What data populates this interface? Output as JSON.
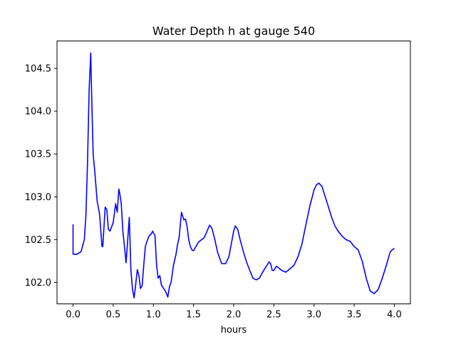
{
  "chart_data": {
    "type": "line",
    "title": "Water Depth h at gauge 540",
    "xlabel": "hours",
    "ylabel": "",
    "xlim": [
      -0.2,
      4.2
    ],
    "ylim": [
      101.75,
      104.82
    ],
    "xticks": [
      0.0,
      0.5,
      1.0,
      1.5,
      2.0,
      2.5,
      3.0,
      3.5,
      4.0
    ],
    "xtick_labels": [
      "0.0",
      "0.5",
      "1.0",
      "1.5",
      "2.0",
      "2.5",
      "3.0",
      "3.5",
      "4.0"
    ],
    "yticks": [
      102.0,
      102.5,
      103.0,
      103.5,
      104.0,
      104.5
    ],
    "ytick_labels": [
      "102.0",
      "102.5",
      "103.0",
      "103.5",
      "104.0",
      "104.5"
    ],
    "grid": false,
    "series": [
      {
        "color": "#0000ff",
        "x": [
          0.0,
          0.0,
          0.05,
          0.1,
          0.14,
          0.16,
          0.18,
          0.2,
          0.22,
          0.23,
          0.25,
          0.27,
          0.3,
          0.33,
          0.36,
          0.37,
          0.4,
          0.42,
          0.44,
          0.46,
          0.48,
          0.5,
          0.53,
          0.55,
          0.57,
          0.58,
          0.6,
          0.62,
          0.64,
          0.66,
          0.7,
          0.72,
          0.74,
          0.76,
          0.78,
          0.8,
          0.82,
          0.84,
          0.86,
          0.88,
          0.9,
          0.92,
          0.95,
          0.97,
          0.99,
          1.0,
          1.02,
          1.04,
          1.06,
          1.08,
          1.1,
          1.12,
          1.15,
          1.18,
          1.2,
          1.22,
          1.25,
          1.28,
          1.3,
          1.32,
          1.35,
          1.38,
          1.4,
          1.42,
          1.44,
          1.46,
          1.48,
          1.5,
          1.53,
          1.56,
          1.6,
          1.63,
          1.66,
          1.7,
          1.73,
          1.76,
          1.8,
          1.85,
          1.9,
          1.94,
          1.98,
          2.0,
          2.02,
          2.05,
          2.08,
          2.12,
          2.16,
          2.2,
          2.24,
          2.28,
          2.32,
          2.36,
          2.4,
          2.44,
          2.46,
          2.48,
          2.5,
          2.53,
          2.56,
          2.6,
          2.65,
          2.7,
          2.75,
          2.8,
          2.85,
          2.9,
          2.95,
          3.0,
          3.03,
          3.06,
          3.1,
          3.14,
          3.18,
          3.22,
          3.26,
          3.3,
          3.35,
          3.4,
          3.45,
          3.5,
          3.55,
          3.6,
          3.65,
          3.7,
          3.75,
          3.8,
          3.85,
          3.9,
          3.95,
          4.0
        ],
        "y": [
          102.68,
          102.33,
          102.33,
          102.36,
          102.5,
          102.78,
          103.4,
          104.25,
          104.68,
          104.25,
          103.5,
          103.3,
          102.95,
          102.8,
          102.42,
          102.42,
          102.88,
          102.85,
          102.62,
          102.6,
          102.65,
          102.7,
          102.92,
          102.82,
          103.09,
          103.05,
          102.92,
          102.6,
          102.42,
          102.23,
          102.76,
          102.15,
          101.92,
          101.82,
          101.98,
          102.15,
          102.08,
          101.93,
          101.96,
          102.2,
          102.42,
          102.48,
          102.55,
          102.56,
          102.6,
          102.58,
          102.55,
          102.2,
          102.05,
          102.08,
          101.97,
          101.94,
          101.9,
          101.83,
          101.95,
          102.0,
          102.2,
          102.32,
          102.44,
          102.52,
          102.82,
          102.73,
          102.74,
          102.65,
          102.5,
          102.42,
          102.38,
          102.37,
          102.42,
          102.47,
          102.5,
          102.52,
          102.58,
          102.67,
          102.63,
          102.52,
          102.35,
          102.22,
          102.22,
          102.3,
          102.5,
          102.6,
          102.66,
          102.62,
          102.5,
          102.36,
          102.24,
          102.14,
          102.05,
          102.03,
          102.05,
          102.12,
          102.18,
          102.24,
          102.22,
          102.14,
          102.14,
          102.19,
          102.17,
          102.14,
          102.12,
          102.16,
          102.2,
          102.3,
          102.45,
          102.68,
          102.9,
          103.08,
          103.14,
          103.16,
          103.12,
          103.0,
          102.88,
          102.76,
          102.66,
          102.6,
          102.54,
          102.5,
          102.48,
          102.42,
          102.38,
          102.25,
          102.05,
          101.9,
          101.87,
          101.92,
          102.05,
          102.2,
          102.36,
          102.4
        ]
      }
    ]
  }
}
